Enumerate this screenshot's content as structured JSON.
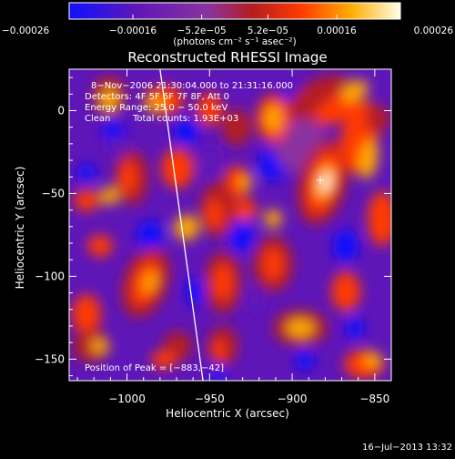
{
  "chart_data": {
    "type": "heatmap",
    "title": "Reconstructed RHESSI Image",
    "xlabel": "Heliocentric X (arcsec)",
    "ylabel": "Heliocentric Y (arcsec)",
    "xlim": [
      -1035,
      -840
    ],
    "ylim": [
      -163,
      25
    ],
    "x_ticks": [
      -1000,
      -950,
      -900,
      -850
    ],
    "x_tick_labels": [
      "−1000",
      "−950",
      "−900",
      "−850"
    ],
    "y_ticks": [
      0,
      -50,
      -100,
      -150
    ],
    "y_tick_labels": [
      "0",
      "−50",
      "−100",
      "−150"
    ],
    "colorbar": {
      "ticks": [
        -0.00026,
        -0.00016,
        -5.2e-05,
        5.2e-05,
        0.00016,
        0.00026
      ],
      "tick_labels": [
        "−0.00026",
        "−0.00016",
        "−5.2e−05",
        "5.2e−05",
        "0.00016",
        "0.00026"
      ],
      "unit_text": "(photons cm⁻² s⁻¹ asec⁻²)",
      "range": [
        -0.00026,
        0.00026
      ],
      "colors": [
        "#1010ff",
        "#5e16b8",
        "#8a33a0",
        "#b41c22",
        "#ff3a00",
        "#ffac00",
        "#ffffe8"
      ]
    },
    "annotations": [
      "8−Nov−2006 21:30:04.000 to 21:31:16.000",
      "Detectors: 4F 5F 6F 7F 8F, Att 0",
      "Energy Range: 25.0 − 50.0 keV",
      "Clean",
      "Total counts: 1.93E+03"
    ],
    "peak": {
      "label": "Position of Peak = [−883,−42]",
      "x": -883,
      "y": -42
    },
    "limb_curve": [
      [
        -980,
        25
      ],
      [
        -968,
        -60
      ],
      [
        -954,
        -163
      ]
    ]
  },
  "footer": {
    "timestamp": "16−Jul−2013 13:32"
  }
}
